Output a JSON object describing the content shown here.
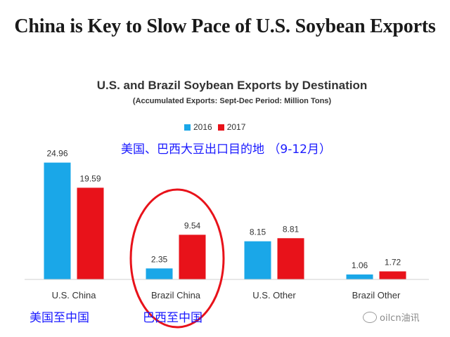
{
  "headline": "China is Key to Slow Pace of U.S. Soybean Exports",
  "annotations": {
    "chinese_title": "美国、巴西大豆出口目的地 （9-12月）",
    "us_china_cn": "美国至中国",
    "brazil_china_cn": "巴西至中国"
  },
  "watermark": "oilcn油讯",
  "colors": {
    "2016": "#1aa7e8",
    "2017": "#e8121a",
    "circle": "#e8121a",
    "annotation": "#1a1aff"
  },
  "chart_data": {
    "type": "bar",
    "title": "U.S. and Brazil Soybean Exports by Destination",
    "subtitle": "(Accumulated Exports:  Sept-Dec Period: Million Tons)",
    "categories": [
      "U.S. China",
      "Brazil China",
      "U.S. Other",
      "Brazil Other"
    ],
    "series": [
      {
        "name": "2016",
        "values": [
          24.96,
          2.35,
          8.15,
          1.06
        ]
      },
      {
        "name": "2017",
        "values": [
          19.59,
          9.54,
          8.81,
          1.72
        ]
      }
    ],
    "ylim": [
      0,
      27
    ],
    "grid": false,
    "legend": "top-center",
    "highlight": "Brazil China"
  }
}
